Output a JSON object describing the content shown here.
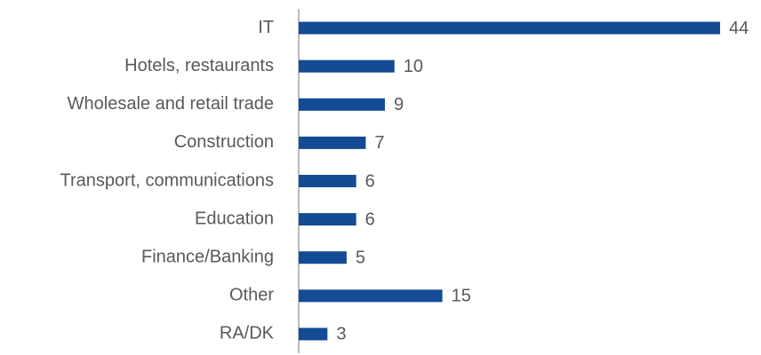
{
  "chart_data": {
    "type": "bar",
    "orientation": "horizontal",
    "categories": [
      "IT",
      "Hotels, restaurants",
      "Wholesale and retail trade",
      "Construction",
      "Transport, communications",
      "Education",
      "Finance/Banking",
      "Other",
      "RA/DK"
    ],
    "values": [
      44,
      10,
      9,
      7,
      6,
      6,
      5,
      15,
      3
    ],
    "color": "#134b94"
  }
}
